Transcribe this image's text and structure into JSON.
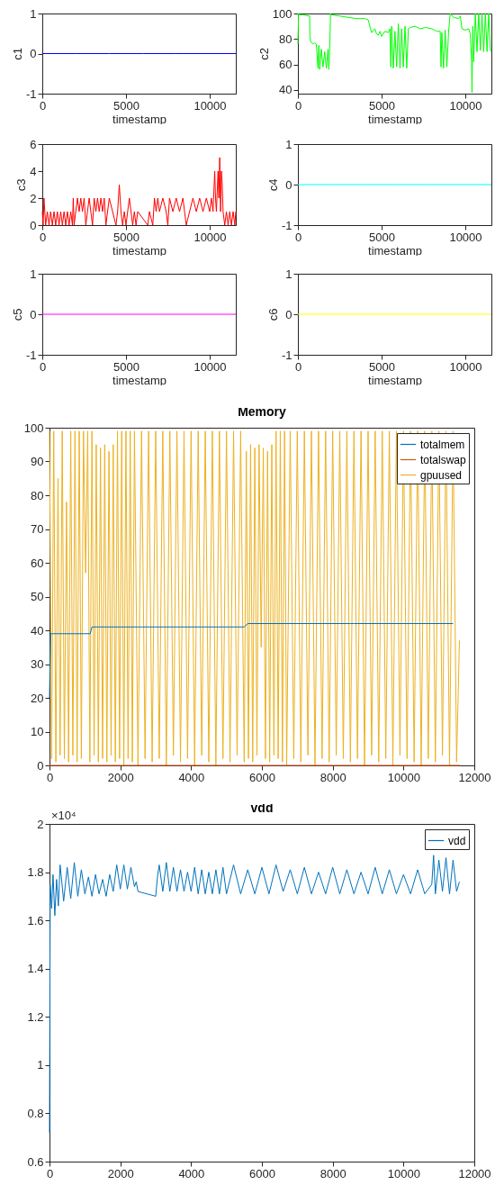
{
  "chart_data": [
    {
      "type": "line",
      "xlabel": "timestamp",
      "ylabel": "c1",
      "x": [
        0,
        2000,
        4000,
        6000,
        8000,
        10000,
        11560
      ],
      "series": [
        {
          "color": "#0000ff",
          "values": [
            0,
            0,
            0,
            0,
            0,
            0,
            0
          ]
        }
      ],
      "xlim": [
        0,
        11560
      ],
      "ylim": [
        -1,
        1
      ],
      "xticks": [
        0,
        5000,
        10000
      ],
      "yticks": [
        -1,
        0,
        1
      ],
      "grid": false,
      "legend": false
    },
    {
      "type": "line",
      "xlabel": "timestamp",
      "ylabel": "c2",
      "x": [
        0,
        40,
        80,
        300,
        700,
        720,
        760,
        900,
        1000,
        1100,
        1200,
        1250,
        1300,
        1400,
        1500,
        1600,
        1700,
        1800,
        1850,
        1900,
        1950,
        2000,
        2500,
        3000,
        3500,
        4000,
        4200,
        4300,
        4400,
        4600,
        4700,
        4800,
        4900,
        5000,
        5200,
        5400,
        5500,
        5550,
        5600,
        5700,
        5800,
        5900,
        6000,
        6100,
        6200,
        6300,
        6400,
        6500,
        6600,
        6700,
        7000,
        7300,
        7600,
        8000,
        8300,
        8500,
        8550,
        8600,
        8700,
        8800,
        8900,
        9000,
        9100,
        9300,
        9600,
        9700,
        9800,
        10000,
        10200,
        10300,
        10380,
        10400,
        10450,
        10500,
        10600,
        10700,
        10800,
        10900,
        11000,
        11100,
        11200,
        11300,
        11400,
        11500,
        11560
      ],
      "series": [
        {
          "color": "#00ff00",
          "values": [
            76,
            100,
            99,
            99,
            98,
            82,
            78,
            76,
            77,
            76,
            57,
            75,
            56,
            72,
            58,
            70,
            57,
            72,
            56,
            73,
            100,
            99,
            98,
            97,
            96,
            96,
            95,
            90,
            85,
            88,
            84,
            83,
            86,
            82,
            86,
            85,
            88,
            58,
            90,
            57,
            86,
            58,
            92,
            57,
            88,
            58,
            90,
            57,
            88,
            89,
            90,
            88,
            89,
            88,
            86,
            86,
            58,
            85,
            57,
            87,
            58,
            85,
            100,
            97,
            96,
            98,
            88,
            87,
            88,
            84,
            62,
            38,
            90,
            62,
            100,
            70,
            100,
            71,
            100,
            70,
            100,
            70,
            100,
            71,
            70
          ]
        }
      ],
      "xlim": [
        0,
        11560
      ],
      "ylim": [
        37,
        100
      ],
      "xticks": [
        0,
        5000,
        10000
      ],
      "yticks": [
        40,
        60,
        80,
        100
      ],
      "grid": false,
      "legend": false
    },
    {
      "type": "line",
      "xlabel": "timestamp",
      "ylabel": "c3",
      "x": [
        0,
        50,
        100,
        150,
        200,
        300,
        400,
        500,
        600,
        700,
        800,
        900,
        1000,
        1100,
        1200,
        1300,
        1400,
        1500,
        1600,
        1700,
        1800,
        1850,
        1900,
        2000,
        2100,
        2200,
        2300,
        2400,
        2500,
        2600,
        2700,
        2800,
        2900,
        3000,
        3100,
        3200,
        3300,
        3400,
        3500,
        3600,
        3700,
        3800,
        3900,
        4000,
        4200,
        4400,
        4500,
        4600,
        4700,
        4800,
        4900,
        5000,
        5100,
        5200,
        5300,
        5400,
        5500,
        5600,
        5700,
        6300,
        6400,
        6600,
        6700,
        6800,
        6900,
        7000,
        7200,
        7400,
        7500,
        7600,
        7800,
        8000,
        8200,
        8400,
        8600,
        8800,
        9000,
        9200,
        9400,
        9600,
        9800,
        10000,
        10100,
        10200,
        10300,
        10350,
        10400,
        10500,
        10550,
        10600,
        10650,
        10700,
        10750,
        10800,
        10900,
        11000,
        11100,
        11200,
        11300,
        11400,
        11500,
        11560
      ],
      "series": [
        {
          "color": "#ff0000",
          "values": [
            1,
            0,
            2,
            1,
            0,
            1,
            0,
            1,
            0,
            1,
            0,
            1,
            0,
            1,
            0,
            1,
            0,
            1,
            0,
            1,
            0,
            2,
            0,
            1,
            2,
            1,
            2,
            1,
            2,
            0,
            1,
            2,
            1,
            0,
            2,
            1,
            2,
            1,
            2,
            1,
            2,
            0,
            1,
            2,
            1,
            0,
            1,
            3,
            1,
            0,
            1,
            0,
            1,
            2,
            1,
            0,
            1,
            0,
            1,
            0,
            1,
            0,
            2,
            1,
            2,
            1,
            2,
            1,
            0,
            2,
            1,
            2,
            1,
            2,
            0,
            1,
            2,
            1,
            2,
            1,
            2,
            1,
            2,
            1,
            4,
            2,
            1,
            4,
            2,
            5,
            1,
            4,
            3,
            1,
            0,
            1,
            0,
            1,
            0,
            1,
            0,
            1
          ]
        }
      ],
      "xlim": [
        0,
        11560
      ],
      "ylim": [
        0,
        6
      ],
      "xticks": [
        0,
        5000,
        10000
      ],
      "yticks": [
        0,
        2,
        4,
        6
      ],
      "grid": false,
      "legend": false
    },
    {
      "type": "line",
      "xlabel": "timestamp",
      "ylabel": "c4",
      "x": [
        0,
        2000,
        4000,
        6000,
        8000,
        10000,
        11560
      ],
      "series": [
        {
          "color": "#00ffff",
          "values": [
            0,
            0,
            0,
            0,
            0,
            0,
            0
          ]
        }
      ],
      "xlim": [
        0,
        11560
      ],
      "ylim": [
        -1,
        1
      ],
      "xticks": [
        0,
        5000,
        10000
      ],
      "yticks": [
        -1,
        0,
        1
      ],
      "grid": false,
      "legend": false
    },
    {
      "type": "line",
      "xlabel": "timestamp",
      "ylabel": "c5",
      "x": [
        0,
        2000,
        4000,
        6000,
        8000,
        10000,
        11560
      ],
      "series": [
        {
          "color": "#ff00ff",
          "values": [
            0,
            0,
            0,
            0,
            0,
            0,
            0
          ]
        }
      ],
      "xlim": [
        0,
        11560
      ],
      "ylim": [
        -1,
        1
      ],
      "xticks": [
        0,
        5000,
        10000
      ],
      "yticks": [
        -1,
        0,
        1
      ],
      "grid": false,
      "legend": false
    },
    {
      "type": "line",
      "xlabel": "timestamp",
      "ylabel": "c6",
      "x": [
        0,
        2000,
        4000,
        6000,
        8000,
        10000,
        11560
      ],
      "series": [
        {
          "color": "#ffff00",
          "values": [
            0,
            0,
            0,
            0,
            0,
            0,
            0
          ]
        }
      ],
      "xlim": [
        0,
        11560
      ],
      "ylim": [
        -1,
        1
      ],
      "xticks": [
        0,
        5000,
        10000
      ],
      "yticks": [
        -1,
        0,
        1
      ],
      "grid": false,
      "legend": false
    },
    {
      "type": "line",
      "title": "Memory",
      "series": [
        {
          "name": "totalmem",
          "color": "#0072bd",
          "x": [
            0,
            30,
            1150,
            1200,
            2500,
            2600,
            5500,
            5600,
            8500,
            8600,
            11400
          ],
          "values": [
            20,
            39,
            39,
            41,
            41,
            41,
            41,
            42,
            42,
            42,
            42
          ]
        },
        {
          "name": "totalswap",
          "color": "#d95319",
          "x": [
            0,
            11600
          ],
          "values": [
            0,
            0
          ]
        },
        {
          "name": "gpuused",
          "color": "#edb120",
          "x": [
            0,
            60,
            120,
            180,
            240,
            300,
            360,
            420,
            480,
            540,
            600,
            660,
            720,
            780,
            840,
            900,
            960,
            1020,
            1080,
            1140,
            1200,
            1260,
            1320,
            1380,
            1440,
            1500,
            1560,
            1620,
            1680,
            1740,
            1800,
            1860,
            1920,
            1980,
            2040,
            2100,
            2160,
            2220,
            2280,
            2340,
            2400,
            2500,
            2600,
            2700,
            2800,
            2900,
            3000,
            3100,
            3200,
            3300,
            3400,
            3500,
            3600,
            3700,
            3800,
            3900,
            4000,
            4100,
            4200,
            4300,
            4400,
            4500,
            4600,
            4700,
            4800,
            4900,
            5000,
            5100,
            5200,
            5300,
            5400,
            5500,
            5560,
            5620,
            5680,
            5740,
            5800,
            5860,
            5920,
            5980,
            6040,
            6100,
            6160,
            6220,
            6280,
            6340,
            6400,
            6460,
            6520,
            6580,
            6640,
            6700,
            6800,
            6900,
            7000,
            7100,
            7200,
            7300,
            7400,
            7500,
            7600,
            7700,
            7800,
            7900,
            8000,
            8100,
            8200,
            8300,
            8400,
            8500,
            8600,
            8700,
            8800,
            8900,
            9000,
            9100,
            9200,
            9300,
            9400,
            9500,
            9600,
            9700,
            9800,
            9900,
            10000,
            10100,
            10200,
            10300,
            10400,
            10500,
            10600,
            10700,
            10800,
            10900,
            11000,
            11100,
            11200,
            11300,
            11400,
            11500,
            11580
          ],
          "values": [
            99,
            2,
            99,
            1,
            85,
            3,
            99,
            2,
            78,
            1,
            99,
            3,
            99,
            1,
            99,
            2,
            99,
            57,
            99,
            1,
            99,
            3,
            95,
            1,
            94,
            2,
            95,
            1,
            93,
            3,
            95,
            1,
            99,
            2,
            99,
            0,
            99,
            2,
            99,
            1,
            99,
            0,
            99,
            2,
            99,
            1,
            99,
            2,
            99,
            0,
            99,
            3,
            99,
            1,
            99,
            2,
            99,
            0,
            99,
            3,
            99,
            1,
            99,
            0,
            99,
            2,
            99,
            1,
            99,
            3,
            99,
            1,
            93,
            2,
            95,
            1,
            94,
            3,
            95,
            35,
            94,
            2,
            93,
            1,
            95,
            3,
            99,
            2,
            99,
            1,
            99,
            0,
            99,
            2,
            99,
            1,
            99,
            3,
            99,
            0,
            99,
            2,
            99,
            1,
            99,
            3,
            99,
            2,
            99,
            1,
            99,
            2,
            99,
            0,
            99,
            3,
            99,
            1,
            99,
            2,
            99,
            0,
            99,
            3,
            99,
            2,
            99,
            1,
            99,
            0,
            99,
            2,
            99,
            1,
            99,
            3,
            99,
            0,
            99,
            1,
            37
          ]
        }
      ],
      "xlim": [
        0,
        12000
      ],
      "ylim": [
        0,
        100
      ],
      "xticks": [
        0,
        2000,
        4000,
        6000,
        8000,
        10000,
        12000
      ],
      "yticks": [
        0,
        10,
        20,
        30,
        40,
        50,
        60,
        70,
        80,
        90,
        100
      ],
      "grid": false,
      "legend": "top right"
    },
    {
      "type": "line",
      "title": "vdd",
      "annotations": [
        "×10⁴"
      ],
      "series": [
        {
          "name": "vdd",
          "color": "#0072bd",
          "x": [
            0,
            20,
            60,
            100,
            150,
            200,
            250,
            300,
            400,
            500,
            600,
            700,
            800,
            900,
            1000,
            1100,
            1200,
            1300,
            1400,
            1500,
            1600,
            1700,
            1800,
            1900,
            2000,
            2100,
            2200,
            2300,
            2400,
            2450,
            2500,
            3000,
            3050,
            3100,
            3200,
            3300,
            3400,
            3500,
            3600,
            3700,
            3800,
            3900,
            4000,
            4100,
            4200,
            4300,
            4400,
            4500,
            4600,
            4700,
            4800,
            4900,
            5000,
            5200,
            5400,
            5600,
            5800,
            6000,
            6200,
            6400,
            6600,
            6800,
            7000,
            7200,
            7400,
            7600,
            7800,
            8000,
            8200,
            8400,
            8600,
            8800,
            9000,
            9200,
            9400,
            9600,
            9800,
            10000,
            10200,
            10400,
            10600,
            10800,
            10850,
            10900,
            11000,
            11100,
            11200,
            11300,
            11400,
            11500,
            11580
          ],
          "values": [
            0.72,
            1.75,
            1.65,
            1.79,
            1.62,
            1.77,
            1.66,
            1.83,
            1.68,
            1.82,
            1.69,
            1.84,
            1.7,
            1.81,
            1.71,
            1.78,
            1.7,
            1.79,
            1.71,
            1.77,
            1.7,
            1.79,
            1.72,
            1.83,
            1.73,
            1.83,
            1.73,
            1.82,
            1.74,
            1.76,
            1.72,
            1.7,
            1.78,
            1.83,
            1.72,
            1.84,
            1.72,
            1.82,
            1.72,
            1.81,
            1.72,
            1.8,
            1.72,
            1.82,
            1.71,
            1.81,
            1.71,
            1.8,
            1.71,
            1.81,
            1.71,
            1.82,
            1.71,
            1.83,
            1.71,
            1.81,
            1.71,
            1.82,
            1.71,
            1.83,
            1.72,
            1.81,
            1.71,
            1.82,
            1.71,
            1.8,
            1.71,
            1.82,
            1.71,
            1.81,
            1.71,
            1.8,
            1.71,
            1.82,
            1.71,
            1.81,
            1.71,
            1.79,
            1.71,
            1.81,
            1.71,
            1.75,
            1.87,
            1.71,
            1.85,
            1.72,
            1.86,
            1.71,
            1.85,
            1.72,
            1.76
          ]
        }
      ],
      "xlim": [
        0,
        12000
      ],
      "ylim": [
        0.6,
        2
      ],
      "xticks": [
        0,
        2000,
        4000,
        6000,
        8000,
        10000,
        12000
      ],
      "yticks": [
        0.6,
        0.8,
        1,
        1.2,
        1.4,
        1.6,
        1.8,
        2
      ],
      "grid": false,
      "legend": "top right"
    }
  ]
}
